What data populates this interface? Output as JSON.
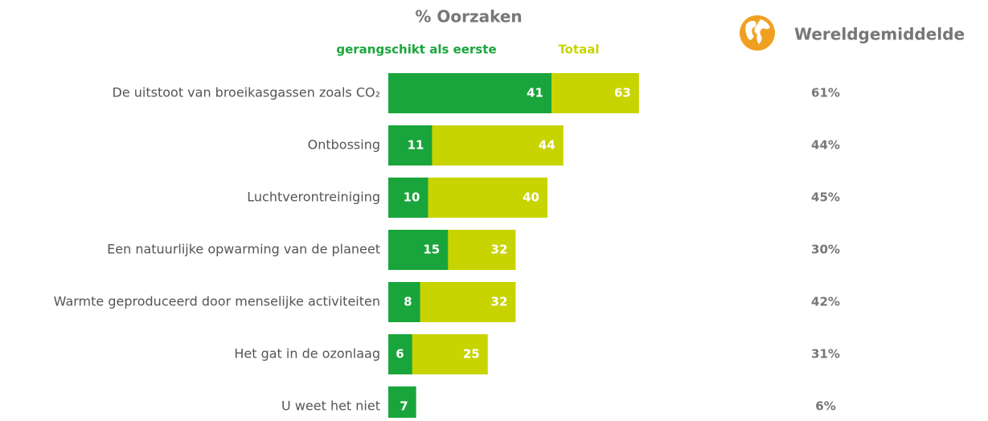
{
  "chart_data": {
    "type": "bar",
    "title": "% Oorzaken",
    "categories": [
      "De uitstoot van broeikasgassen zoals CO₂",
      "Ontbossing",
      "Luchtverontreiniging",
      "Een natuurlijke opwarming van de planeet",
      "Warmte geproduceerd door menselijke activiteiten",
      "Het gat in de ozonlaag",
      "U weet het niet"
    ],
    "series": [
      {
        "name": "Totaal",
        "color": "#c8d400",
        "values": [
          63,
          44,
          40,
          32,
          32,
          25,
          null
        ]
      },
      {
        "name": "gerangschikt als eerste",
        "color": "#1aa53c",
        "values": [
          41,
          11,
          10,
          15,
          8,
          6,
          7
        ]
      },
      {
        "name": "Wereldgemiddelde",
        "color": "#777777",
        "values": [
          61,
          44,
          45,
          30,
          42,
          31,
          6
        ],
        "value_labels": [
          "61%",
          "44%",
          "45%",
          "30%",
          "42%",
          "31%",
          "6%"
        ]
      }
    ]
  }
}
